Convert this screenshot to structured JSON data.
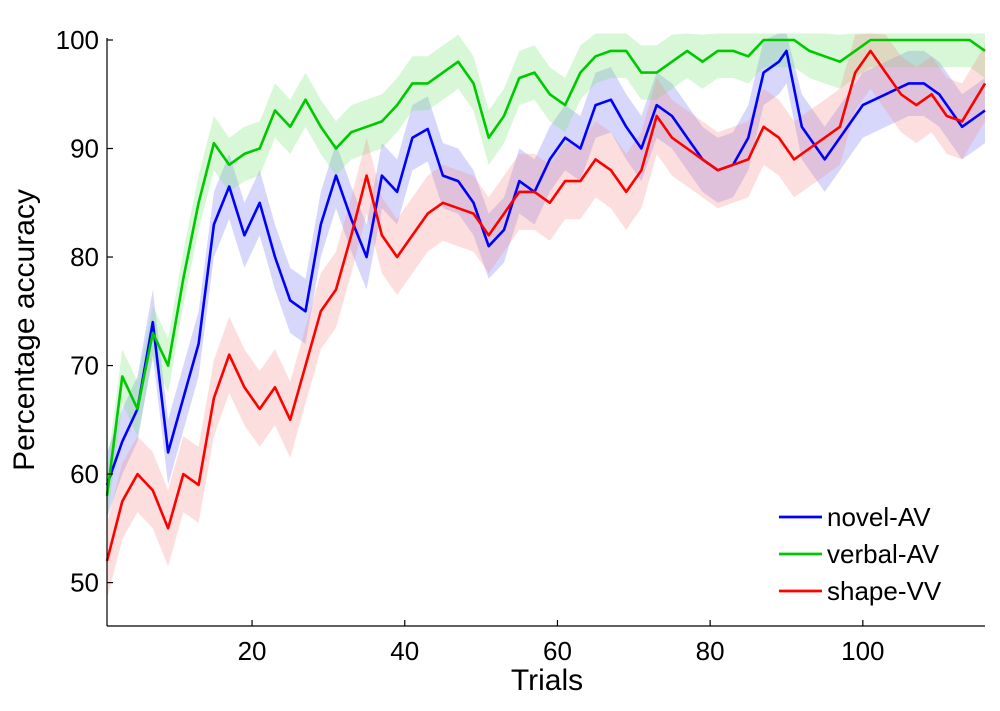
{
  "chart_data": {
    "type": "line",
    "title": "",
    "xlabel": "Trials",
    "ylabel": "Percentage accuracy",
    "xlim": [
      1,
      116
    ],
    "ylim": [
      46,
      100
    ],
    "xticks": [
      20,
      40,
      60,
      80,
      100
    ],
    "yticks": [
      50,
      60,
      70,
      80,
      90,
      100
    ],
    "grid": false,
    "legend_position": "bottom-right",
    "band_opacity": 0.28,
    "series": [
      {
        "name": "novel-AV",
        "color": "#0000ff",
        "band_color": "#6f6ff2",
        "band_halfwidth": 3.0,
        "x": [
          1,
          3,
          5,
          7,
          9,
          11,
          13,
          15,
          17,
          19,
          21,
          23,
          25,
          27,
          29,
          31,
          33,
          35,
          37,
          39,
          41,
          43,
          45,
          47,
          49,
          51,
          53,
          55,
          57,
          59,
          61,
          63,
          65,
          67,
          69,
          71,
          73,
          75,
          77,
          79,
          81,
          83,
          85,
          87,
          89,
          90,
          92,
          95,
          98,
          100,
          103,
          106,
          108,
          110,
          113,
          116
        ],
        "y": [
          59,
          63,
          66,
          74,
          62,
          67,
          72,
          83,
          86.5,
          82,
          85,
          80,
          76,
          75,
          83,
          87.5,
          83.5,
          80,
          87.5,
          86,
          91,
          91.8,
          87.5,
          87,
          85,
          81,
          82.5,
          87,
          86,
          89,
          91,
          90,
          94,
          94.5,
          92,
          90,
          94,
          93,
          91,
          89,
          88,
          88.5,
          91,
          97,
          98,
          99,
          92,
          89,
          92,
          94,
          95,
          96,
          96,
          95,
          92,
          93.5
        ]
      },
      {
        "name": "verbal-AV",
        "color": "#00c800",
        "band_color": "#6fe36f",
        "band_halfwidth": 2.5,
        "x": [
          1,
          3,
          5,
          7,
          9,
          11,
          13,
          15,
          17,
          19,
          21,
          23,
          25,
          27,
          29,
          31,
          33,
          35,
          37,
          39,
          41,
          43,
          45,
          47,
          49,
          51,
          53,
          55,
          57,
          59,
          61,
          63,
          65,
          67,
          69,
          71,
          73,
          75,
          77,
          79,
          81,
          83,
          85,
          87,
          89,
          91,
          93,
          95,
          97,
          99,
          101,
          103,
          105,
          108,
          111,
          114,
          116
        ],
        "y": [
          58,
          69,
          66,
          73,
          70,
          78,
          85,
          90.5,
          88.5,
          89.5,
          90,
          93.5,
          92,
          94.5,
          92,
          90,
          91.5,
          92,
          92.5,
          94,
          96,
          96,
          97,
          98,
          96,
          91,
          93,
          96.5,
          97,
          95,
          94,
          97,
          98.5,
          99,
          99,
          97,
          97,
          98,
          99,
          98,
          99,
          99,
          98.5,
          100,
          100,
          100,
          99,
          98.5,
          98,
          99,
          100,
          100,
          100,
          100,
          100,
          100,
          99
        ]
      },
      {
        "name": "shape-VV",
        "color": "#ff0000",
        "band_color": "#f58a8a",
        "band_halfwidth": 3.5,
        "x": [
          1,
          3,
          5,
          7,
          9,
          11,
          13,
          15,
          17,
          19,
          21,
          23,
          25,
          27,
          29,
          31,
          33,
          35,
          37,
          39,
          41,
          43,
          45,
          47,
          49,
          51,
          53,
          55,
          57,
          59,
          61,
          63,
          65,
          67,
          69,
          71,
          73,
          75,
          77,
          79,
          81,
          83,
          85,
          87,
          89,
          91,
          93,
          95,
          97,
          99,
          101,
          103,
          105,
          107,
          109,
          111,
          113,
          116
        ],
        "y": [
          52,
          57.5,
          60,
          58.5,
          55,
          60,
          59,
          67,
          71,
          68,
          66,
          68,
          65,
          70,
          75,
          77,
          82,
          87.5,
          82,
          80,
          82,
          84,
          85,
          84.5,
          84,
          82,
          84,
          86,
          86,
          85,
          87,
          87,
          89,
          88,
          86,
          88,
          93,
          91,
          90,
          89,
          88,
          88.5,
          89,
          92,
          91,
          89,
          90,
          91,
          92,
          97,
          99,
          97,
          95,
          94,
          95,
          93,
          92.5,
          96
        ]
      }
    ]
  }
}
